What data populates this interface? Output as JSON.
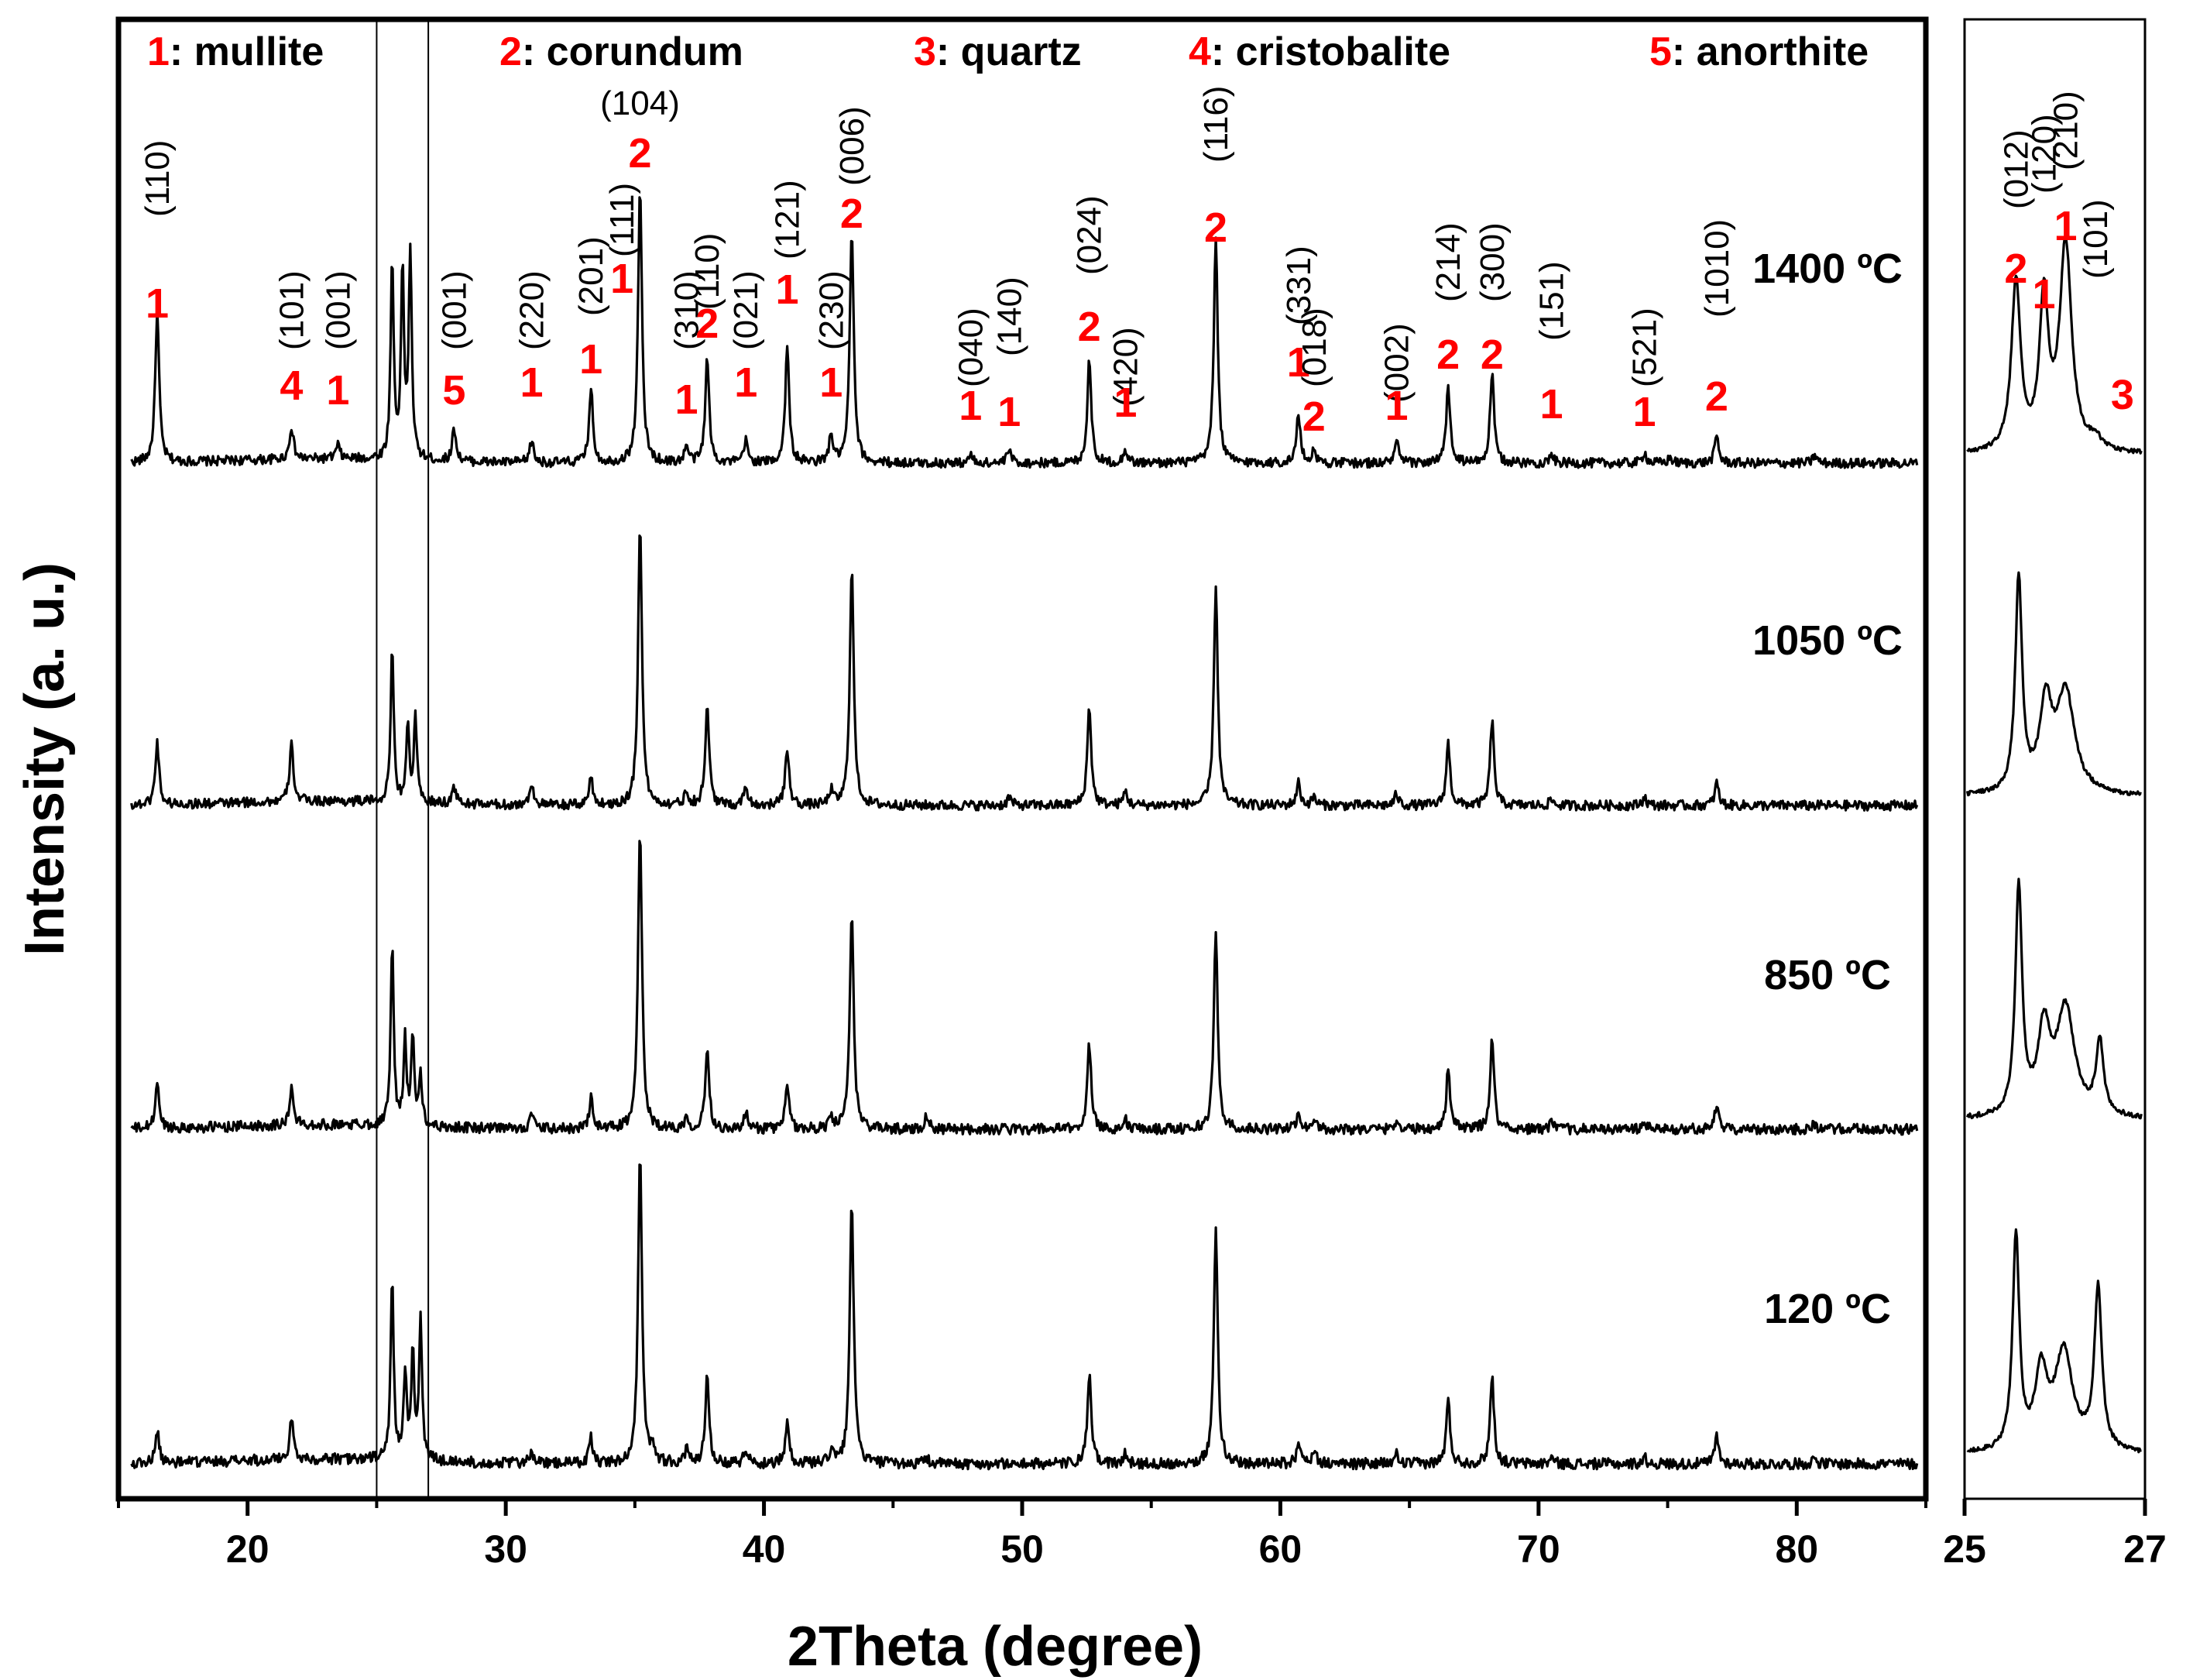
{
  "chart_data": {
    "type": "line",
    "xlabel": "2Theta (degree)",
    "ylabel": "Intensity (a. u.)",
    "main_panel": {
      "xlim": [
        15,
        85
      ],
      "xticks": [
        20,
        30,
        40,
        50,
        60,
        70,
        80
      ],
      "highlight_region": [
        25,
        27
      ]
    },
    "inset_panel": {
      "xlim": [
        25,
        27
      ],
      "xticks": [
        25,
        27
      ]
    },
    "legend": [
      {
        "num": "1",
        "phase": ": mullite"
      },
      {
        "num": "2",
        "phase": ": corundum"
      },
      {
        "num": "3",
        "phase": ": quartz"
      },
      {
        "num": "4",
        "phase": ": cristobalite"
      },
      {
        "num": "5",
        "phase": ": anorthite"
      }
    ],
    "series": [
      {
        "name": "1400 ºC",
        "peaks": [
          [
            16.5,
            0.55
          ],
          [
            21.7,
            0.12
          ],
          [
            23.5,
            0.05
          ],
          [
            25.6,
            0.72
          ],
          [
            26.0,
            0.68
          ],
          [
            26.3,
            0.75
          ],
          [
            28.0,
            0.12
          ],
          [
            31.0,
            0.08
          ],
          [
            33.3,
            0.27
          ],
          [
            35.2,
            1.0
          ],
          [
            37.0,
            0.06
          ],
          [
            37.8,
            0.38
          ],
          [
            39.3,
            0.08
          ],
          [
            40.9,
            0.42
          ],
          [
            42.6,
            0.1
          ],
          [
            43.4,
            0.85
          ],
          [
            48.0,
            0.03
          ],
          [
            49.5,
            0.05
          ],
          [
            52.6,
            0.38
          ],
          [
            54.0,
            0.05
          ],
          [
            57.5,
            0.82
          ],
          [
            60.7,
            0.18
          ],
          [
            61.3,
            0.05
          ],
          [
            64.5,
            0.08
          ],
          [
            66.5,
            0.28
          ],
          [
            68.2,
            0.33
          ],
          [
            70.5,
            0.03
          ],
          [
            74.1,
            0.04
          ],
          [
            75.1,
            0.02
          ],
          [
            76.9,
            0.1
          ],
          [
            80.7,
            0.03
          ]
        ]
      },
      {
        "name": "1050 ºC",
        "peaks": [
          [
            16.5,
            0.22
          ],
          [
            21.7,
            0.2
          ],
          [
            25.6,
            0.55
          ],
          [
            26.2,
            0.28
          ],
          [
            26.5,
            0.3
          ],
          [
            28.0,
            0.06
          ],
          [
            31.0,
            0.08
          ],
          [
            33.3,
            0.1
          ],
          [
            35.2,
            1.0
          ],
          [
            37.0,
            0.05
          ],
          [
            37.8,
            0.35
          ],
          [
            39.3,
            0.07
          ],
          [
            40.9,
            0.2
          ],
          [
            42.6,
            0.05
          ],
          [
            43.4,
            0.85
          ],
          [
            49.5,
            0.03
          ],
          [
            52.6,
            0.35
          ],
          [
            54.0,
            0.05
          ],
          [
            57.5,
            0.78
          ],
          [
            60.7,
            0.08
          ],
          [
            61.3,
            0.03
          ],
          [
            64.5,
            0.04
          ],
          [
            66.5,
            0.22
          ],
          [
            68.2,
            0.3
          ],
          [
            70.5,
            0.02
          ],
          [
            74.1,
            0.03
          ],
          [
            76.9,
            0.08
          ]
        ]
      },
      {
        "name": "850 ºC",
        "peaks": [
          [
            16.5,
            0.15
          ],
          [
            21.7,
            0.12
          ],
          [
            25.6,
            0.6
          ],
          [
            26.1,
            0.28
          ],
          [
            26.4,
            0.3
          ],
          [
            26.7,
            0.16
          ],
          [
            31.0,
            0.05
          ],
          [
            33.3,
            0.1
          ],
          [
            35.2,
            1.0
          ],
          [
            37.0,
            0.04
          ],
          [
            37.8,
            0.27
          ],
          [
            39.3,
            0.05
          ],
          [
            40.9,
            0.14
          ],
          [
            42.6,
            0.04
          ],
          [
            43.4,
            0.72
          ],
          [
            46.3,
            0.05
          ],
          [
            52.6,
            0.28
          ],
          [
            54.0,
            0.03
          ],
          [
            57.5,
            0.65
          ],
          [
            60.7,
            0.05
          ],
          [
            61.3,
            0.04
          ],
          [
            64.5,
            0.03
          ],
          [
            66.5,
            0.2
          ],
          [
            68.2,
            0.3
          ],
          [
            70.5,
            0.02
          ],
          [
            74.1,
            0.02
          ],
          [
            76.9,
            0.08
          ],
          [
            80.7,
            0.02
          ]
        ]
      },
      {
        "name": "120 ºC",
        "peaks": [
          [
            16.5,
            0.1
          ],
          [
            21.7,
            0.13
          ],
          [
            25.6,
            0.58
          ],
          [
            26.1,
            0.28
          ],
          [
            26.4,
            0.33
          ],
          [
            26.7,
            0.44
          ],
          [
            31.0,
            0.04
          ],
          [
            33.3,
            0.08
          ],
          [
            35.2,
            1.0
          ],
          [
            35.7,
            0.05
          ],
          [
            37.0,
            0.04
          ],
          [
            37.8,
            0.28
          ],
          [
            39.3,
            0.05
          ],
          [
            40.9,
            0.13
          ],
          [
            42.6,
            0.04
          ],
          [
            43.4,
            0.85
          ],
          [
            46.3,
            0.02
          ],
          [
            52.6,
            0.28
          ],
          [
            54.0,
            0.03
          ],
          [
            57.5,
            0.75
          ],
          [
            60.7,
            0.06
          ],
          [
            61.3,
            0.05
          ],
          [
            64.5,
            0.03
          ],
          [
            66.5,
            0.2
          ],
          [
            68.2,
            0.28
          ],
          [
            70.5,
            0.02
          ],
          [
            74.1,
            0.02
          ],
          [
            76.9,
            0.09
          ],
          [
            80.7,
            0.02
          ]
        ]
      }
    ],
    "inset_series": [
      {
        "name": "1400 ºC",
        "peaks": [
          [
            25.57,
            0.78,
            0.06
          ],
          [
            25.88,
            0.68,
            0.06
          ],
          [
            26.12,
            0.95,
            0.08
          ],
          [
            26.45,
            0.05,
            0.08
          ]
        ]
      },
      {
        "name": "1050 ºC",
        "peaks": [
          [
            25.6,
            0.95,
            0.045
          ],
          [
            25.9,
            0.38,
            0.08
          ],
          [
            26.12,
            0.45,
            0.12
          ]
        ]
      },
      {
        "name": "850 ºC",
        "peaks": [
          [
            25.6,
            0.95,
            0.045
          ],
          [
            25.88,
            0.35,
            0.08
          ],
          [
            26.12,
            0.45,
            0.12
          ],
          [
            26.5,
            0.3,
            0.05
          ]
        ]
      },
      {
        "name": "120 ºC",
        "peaks": [
          [
            25.57,
            0.9,
            0.045
          ],
          [
            25.85,
            0.32,
            0.08
          ],
          [
            26.1,
            0.42,
            0.12
          ],
          [
            26.48,
            0.68,
            0.05
          ]
        ]
      }
    ],
    "peak_annotations_main": [
      {
        "x": 16.5,
        "hkl": "(110)",
        "phase": "1"
      },
      {
        "x": 21.7,
        "hkl": "(101)",
        "phase": "4"
      },
      {
        "x": 23.5,
        "hkl": "(001)",
        "phase": "1"
      },
      {
        "x": 28.0,
        "hkl": "(001)",
        "phase": "5"
      },
      {
        "x": 31.0,
        "hkl": "(220)",
        "phase": "1"
      },
      {
        "x": 33.3,
        "hkl": "(201)",
        "phase": "1"
      },
      {
        "x": 34.5,
        "hkl": "(111)",
        "phase": "1"
      },
      {
        "x": 35.2,
        "hkl": "(104)",
        "phase": "2"
      },
      {
        "x": 37.0,
        "hkl": "(310)",
        "phase": "1"
      },
      {
        "x": 37.8,
        "hkl": "(110)",
        "phase": "2"
      },
      {
        "x": 39.3,
        "hkl": "(021)",
        "phase": "1"
      },
      {
        "x": 40.9,
        "hkl": "(121)",
        "phase": "1"
      },
      {
        "x": 42.6,
        "hkl": "(230)",
        "phase": "1"
      },
      {
        "x": 43.4,
        "hkl": "(006)",
        "phase": "2"
      },
      {
        "x": 48.0,
        "hkl": "(040)",
        "phase": "1"
      },
      {
        "x": 49.5,
        "hkl": "(140)",
        "phase": "1"
      },
      {
        "x": 52.6,
        "hkl": "(024)",
        "phase": "2"
      },
      {
        "x": 54.0,
        "hkl": "(420)",
        "phase": "1"
      },
      {
        "x": 57.5,
        "hkl": "(116)",
        "phase": "2"
      },
      {
        "x": 60.7,
        "hkl": "(331)",
        "phase": "1"
      },
      {
        "x": 61.3,
        "hkl": "(018)",
        "phase": "2"
      },
      {
        "x": 64.5,
        "hkl": "(002)",
        "phase": "1"
      },
      {
        "x": 66.5,
        "hkl": "(214)",
        "phase": "2"
      },
      {
        "x": 68.2,
        "hkl": "(300)",
        "phase": "2"
      },
      {
        "x": 70.5,
        "hkl": "(151)",
        "phase": "1"
      },
      {
        "x": 74.1,
        "hkl": "(521)",
        "phase": "1"
      },
      {
        "x": 76.9,
        "hkl": "(1010)",
        "phase": "2"
      }
    ],
    "peak_annotations_inset": [
      {
        "x": 25.57,
        "hkl": "(012)",
        "phase": "2"
      },
      {
        "x": 25.88,
        "hkl": "(120)",
        "phase": "1"
      },
      {
        "x": 26.12,
        "hkl": "(210)",
        "phase": "1"
      },
      {
        "x": 26.45,
        "hkl": "(101)",
        "phase": "3"
      }
    ]
  },
  "colors": {
    "accent": "#ff0000",
    "line": "#000000"
  }
}
